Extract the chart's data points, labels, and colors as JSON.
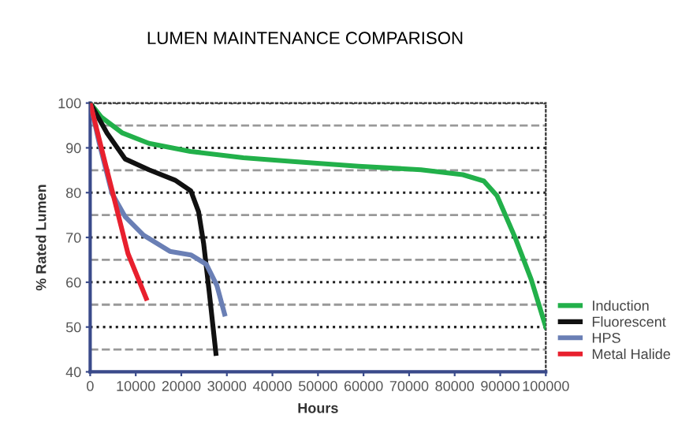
{
  "chart_data": {
    "type": "line",
    "title": "LUMEN MAINTENANCE COMPARISON",
    "xlabel": "Hours",
    "ylabel": "% Rated Lumen",
    "xlim": [
      0,
      100000
    ],
    "xticks": [
      0,
      10000,
      20000,
      30000,
      40000,
      50000,
      60000,
      70000,
      80000,
      90000,
      100000
    ],
    "ylim": [
      40,
      100
    ],
    "yticks": [
      40,
      50,
      60,
      70,
      80,
      90,
      100
    ],
    "grid": "y",
    "legend": "right",
    "marker": "none",
    "line_style": "solid",
    "ref_lines": [
      {
        "axis": "y",
        "value": 45,
        "line_style": "dashed",
        "color": "#999999"
      },
      {
        "axis": "y",
        "value": 55,
        "line_style": "dashed",
        "color": "#999999"
      },
      {
        "axis": "y",
        "value": 65,
        "line_style": "dashed",
        "color": "#999999"
      },
      {
        "axis": "y",
        "value": 75,
        "line_style": "dashed",
        "color": "#999999"
      },
      {
        "axis": "y",
        "value": 85,
        "line_style": "dashed",
        "color": "#999999"
      },
      {
        "axis": "y",
        "value": 95,
        "line_style": "dashed",
        "color": "#999999"
      }
    ],
    "series": [
      {
        "name": "Induction",
        "color": "#22b04a",
        "x": [
          0,
          2500,
          7100,
          12900,
          22000,
          33600,
          45000,
          58900,
          72600,
          81800,
          86400,
          89300,
          93300,
          96800,
          100000
        ],
        "values": [
          100,
          96.8,
          93.3,
          91,
          89.2,
          87.8,
          86.9,
          85.9,
          85.1,
          84.0,
          82.6,
          79.3,
          69.9,
          60.6,
          50
        ]
      },
      {
        "name": "Fluorescent",
        "color": "#111111",
        "x": [
          0,
          3700,
          7700,
          12900,
          18600,
          22100,
          23800,
          24900,
          26100,
          27600
        ],
        "values": [
          100,
          93.3,
          87.5,
          85.1,
          82.8,
          80.4,
          75.7,
          68.7,
          58.1,
          44.1
        ]
      },
      {
        "name": "HPS",
        "color": "#6a7fb5",
        "x": [
          0,
          2000,
          4800,
          7700,
          11700,
          17500,
          22100,
          25500,
          27800,
          29500
        ],
        "values": [
          100,
          91,
          79.8,
          74.6,
          70.5,
          66.9,
          66.1,
          64.0,
          59.3,
          52.9
        ]
      },
      {
        "name": "Metal Halide",
        "color": "#e8202e",
        "x": [
          0,
          2500,
          6000,
          8300,
          12300
        ],
        "values": [
          100,
          89.8,
          75.7,
          66.4,
          56.4
        ]
      }
    ]
  }
}
